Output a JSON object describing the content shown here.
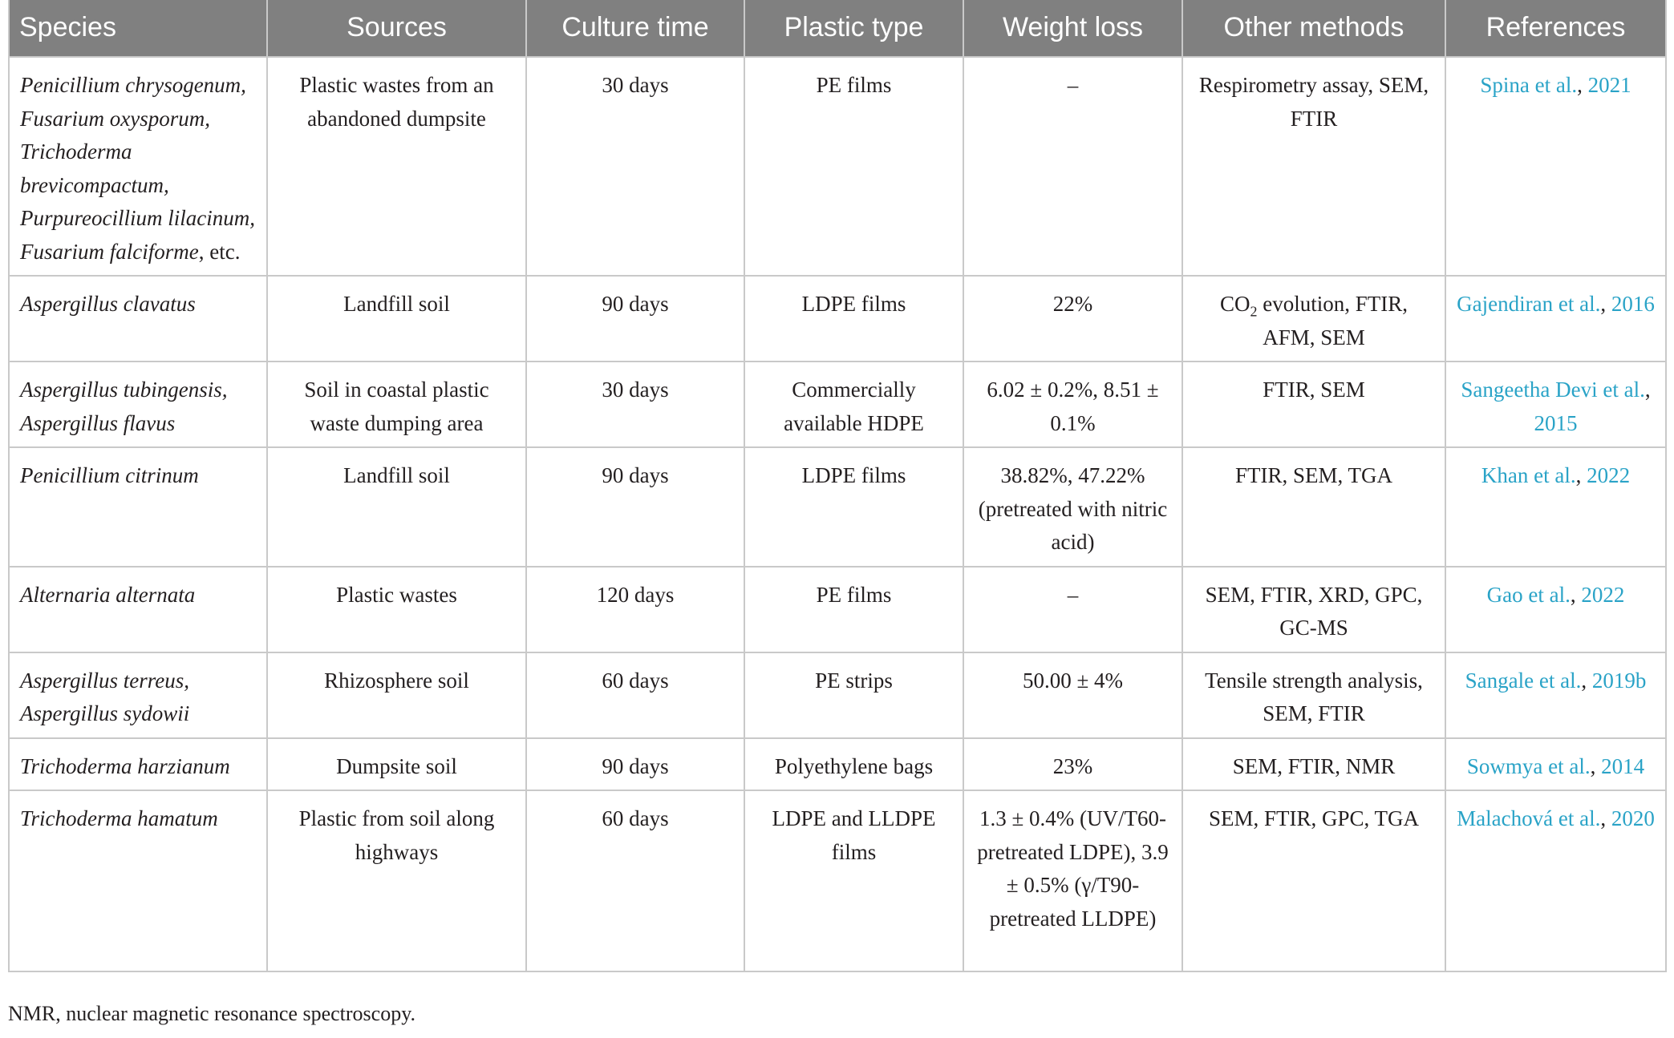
{
  "table": {
    "headers": [
      "Species",
      "Sources",
      "Culture time",
      "Plastic type",
      "Weight loss",
      "Other methods",
      "References"
    ],
    "rows": [
      {
        "species": "Penicillium chrysogenum, Fusarium oxysporum, Trichoderma brevicompactum, Purpureocillium lilacinum, Fusarium falciforme",
        "species_suffix": ", etc.",
        "sources": "Plastic wastes from an abandoned dumpsite",
        "culture_time": "30 days",
        "plastic_type": "PE films",
        "weight_loss": "–",
        "other_methods": "Respirometry assay, SEM, FTIR",
        "ref_authors": "Spina et al.",
        "ref_year": "2021"
      },
      {
        "species": "Aspergillus clavatus",
        "species_suffix": "",
        "sources": "Landfill soil",
        "culture_time": "90 days",
        "plastic_type": "LDPE films",
        "weight_loss": "22%",
        "other_methods_prefix": "CO",
        "other_methods_sub": "2",
        "other_methods": " evolution, FTIR, AFM, SEM",
        "ref_authors": "Gajendiran et al.",
        "ref_year": "2016"
      },
      {
        "species": "Aspergillus tubingensis, Aspergillus flavus",
        "species_suffix": "",
        "sources": "Soil in coastal plastic waste dumping area",
        "culture_time": "30 days",
        "plastic_type": "Commercially available HDPE",
        "weight_loss": "6.02 ± 0.2%, 8.51 ± 0.1%",
        "other_methods": "FTIR, SEM",
        "ref_authors": "Sangeetha Devi et al.",
        "ref_year": "2015"
      },
      {
        "species": "Penicillium citrinum",
        "species_suffix": "",
        "sources": "Landfill soil",
        "culture_time": "90 days",
        "plastic_type": "LDPE films",
        "weight_loss": "38.82%, 47.22% (pretreated with nitric acid)",
        "other_methods": "FTIR, SEM, TGA",
        "ref_authors": "Khan et al.",
        "ref_year": "2022"
      },
      {
        "species": "Alternaria alternata",
        "species_suffix": "",
        "sources": "Plastic wastes",
        "culture_time": "120 days",
        "plastic_type": "PE films",
        "weight_loss": "–",
        "other_methods": "SEM, FTIR, XRD, GPC, GC-MS",
        "ref_authors": "Gao et al.",
        "ref_year": "2022"
      },
      {
        "species": "Aspergillus terreus, Aspergillus sydowii",
        "species_suffix": "",
        "sources": "Rhizosphere soil",
        "culture_time": "60 days",
        "plastic_type": "PE strips",
        "weight_loss": "50.00 ± 4%",
        "other_methods": "Tensile strength analysis, SEM, FTIR",
        "ref_authors": "Sangale et al.",
        "ref_year": "2019b"
      },
      {
        "species": "Trichoderma harzianum",
        "species_suffix": "",
        "sources": "Dumpsite soil",
        "culture_time": "90 days",
        "plastic_type": "Polyethylene bags",
        "weight_loss": "23%",
        "other_methods": "SEM, FTIR, NMR",
        "ref_authors": "Sowmya et al.",
        "ref_year": "2014"
      },
      {
        "species": "Trichoderma hamatum",
        "species_suffix": "",
        "sources": "Plastic from soil along highways",
        "culture_time": "60 days",
        "plastic_type": "LDPE and LLDPE films",
        "weight_loss": "1.3 ± 0.4% (UV/T60-pretreated LDPE), 3.9 ± 0.5% (γ/T90-pretreated LLDPE)",
        "other_methods": "SEM, FTIR, GPC, TGA",
        "ref_authors": "Malachová et al.",
        "ref_year": "2020"
      }
    ]
  },
  "footnote": "NMR, nuclear magnetic resonance spectroscopy.",
  "colors": {
    "header_bg": "#808080",
    "header_text": "#ffffff",
    "link": "#2aa3c7",
    "border": "#c9c9c9"
  }
}
